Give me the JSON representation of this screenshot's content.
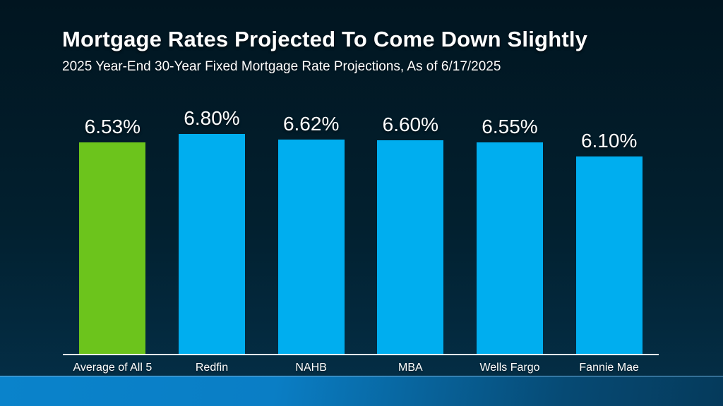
{
  "header": {
    "title": "Mortgage Rates Projected To Come Down Slightly",
    "subtitle": "2025 Year-End 30-Year Fixed Mortgage Rate Projections, As of 6/17/2025"
  },
  "chart_data": {
    "type": "bar",
    "title": "Mortgage Rates Projected To Come Down Slightly",
    "subtitle": "2025 Year-End 30-Year Fixed Mortgage Rate Projections, As of 6/17/2025",
    "categories": [
      "Average of All 5",
      "Redfin",
      "NAHB",
      "MBA",
      "Wells Fargo",
      "Fannie Mae"
    ],
    "values": [
      6.53,
      6.8,
      6.62,
      6.6,
      6.55,
      6.1
    ],
    "value_labels": [
      "6.53%",
      "6.80%",
      "6.62%",
      "6.60%",
      "6.55%",
      "6.10%"
    ],
    "bar_colors": [
      "#6cc41c",
      "#00aeef",
      "#00aeef",
      "#00aeef",
      "#00aeef",
      "#00aeef"
    ],
    "highlight_index": 0,
    "xlabel": "",
    "ylabel": "",
    "ylim": [
      0,
      6.8
    ],
    "grid": false,
    "legend": false,
    "value_label_position": "above-bar",
    "baseline_axis_color": "#ffffff"
  },
  "colors": {
    "background_top": "#011520",
    "background_bottom": "#043049",
    "bar_blue": "#00aeef",
    "bar_green": "#6cc41c",
    "axis_line": "#ffffff",
    "footer_gradient_left": "#0a83cb",
    "footer_gradient_right": "#053a5b",
    "text": "#ffffff"
  }
}
